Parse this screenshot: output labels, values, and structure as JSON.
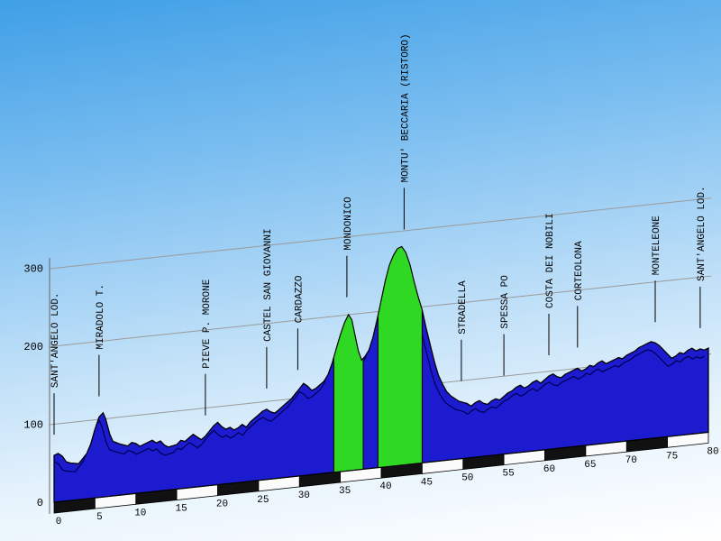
{
  "chart_data": {
    "type": "area",
    "description": "Cycling stage elevation profile with sheared 3D perspective",
    "xlim": [
      0,
      80
    ],
    "ylim": [
      0,
      300
    ],
    "x_ticks": [
      0,
      5,
      10,
      15,
      20,
      25,
      30,
      35,
      40,
      45,
      50,
      55,
      60,
      65,
      70,
      75,
      80
    ],
    "y_ticks": [
      0,
      100,
      200,
      300
    ],
    "grid": true,
    "profile": [
      [
        0,
        60
      ],
      [
        0.5,
        62
      ],
      [
        1,
        58
      ],
      [
        1.5,
        50
      ],
      [
        2,
        48
      ],
      [
        3,
        46
      ],
      [
        3.5,
        52
      ],
      [
        4,
        58
      ],
      [
        4.5,
        70
      ],
      [
        5,
        88
      ],
      [
        5.5,
        103
      ],
      [
        6,
        108
      ],
      [
        6.3,
        100
      ],
      [
        6.8,
        80
      ],
      [
        7.2,
        70
      ],
      [
        8,
        66
      ],
      [
        9,
        62
      ],
      [
        9.5,
        66
      ],
      [
        10,
        64
      ],
      [
        10.5,
        60
      ],
      [
        11,
        62
      ],
      [
        12,
        66
      ],
      [
        12.5,
        62
      ],
      [
        13,
        64
      ],
      [
        13.5,
        58
      ],
      [
        14,
        55
      ],
      [
        15,
        57
      ],
      [
        15.5,
        62
      ],
      [
        16,
        60
      ],
      [
        16.5,
        64
      ],
      [
        17,
        68
      ],
      [
        17.5,
        64
      ],
      [
        18,
        60
      ],
      [
        18.5,
        64
      ],
      [
        19,
        70
      ],
      [
        19.5,
        76
      ],
      [
        20,
        80
      ],
      [
        20.5,
        74
      ],
      [
        21,
        70
      ],
      [
        21.5,
        72
      ],
      [
        22,
        68
      ],
      [
        22.5,
        70
      ],
      [
        23,
        74
      ],
      [
        23.5,
        70
      ],
      [
        24,
        76
      ],
      [
        24.5,
        80
      ],
      [
        25,
        84
      ],
      [
        25.5,
        88
      ],
      [
        26,
        90
      ],
      [
        26.5,
        86
      ],
      [
        27,
        84
      ],
      [
        27.5,
        88
      ],
      [
        28,
        92
      ],
      [
        28.5,
        96
      ],
      [
        29,
        100
      ],
      [
        29.5,
        106
      ],
      [
        30,
        112
      ],
      [
        30.5,
        118
      ],
      [
        31,
        114
      ],
      [
        31.5,
        108
      ],
      [
        32,
        110
      ],
      [
        32.5,
        114
      ],
      [
        33,
        118
      ],
      [
        33.5,
        126
      ],
      [
        34,
        140
      ],
      [
        34.5,
        158
      ],
      [
        35,
        175
      ],
      [
        35.5,
        190
      ],
      [
        36,
        200
      ],
      [
        36.4,
        193
      ],
      [
        36.8,
        172
      ],
      [
        37.2,
        152
      ],
      [
        37.6,
        140
      ],
      [
        38,
        144
      ],
      [
        38.5,
        152
      ],
      [
        39,
        168
      ],
      [
        39.5,
        190
      ],
      [
        40,
        214
      ],
      [
        40.5,
        238
      ],
      [
        41,
        258
      ],
      [
        41.5,
        270
      ],
      [
        42,
        278
      ],
      [
        42.5,
        280
      ],
      [
        43,
        272
      ],
      [
        43.5,
        256
      ],
      [
        44,
        234
      ],
      [
        44.5,
        214
      ],
      [
        45,
        196
      ],
      [
        45.5,
        172
      ],
      [
        46,
        150
      ],
      [
        46.5,
        128
      ],
      [
        47,
        110
      ],
      [
        47.5,
        98
      ],
      [
        48,
        88
      ],
      [
        48.5,
        82
      ],
      [
        49,
        78
      ],
      [
        49.5,
        74
      ],
      [
        50,
        72
      ],
      [
        50.5,
        70
      ],
      [
        51,
        66
      ],
      [
        51.5,
        70
      ],
      [
        52,
        72
      ],
      [
        52.5,
        68
      ],
      [
        53,
        66
      ],
      [
        53.5,
        70
      ],
      [
        54,
        72
      ],
      [
        54.5,
        70
      ],
      [
        55,
        74
      ],
      [
        55.5,
        78
      ],
      [
        56,
        80
      ],
      [
        56.5,
        84
      ],
      [
        57,
        86
      ],
      [
        57.5,
        82
      ],
      [
        58,
        84
      ],
      [
        58.5,
        88
      ],
      [
        59,
        90
      ],
      [
        59.5,
        86
      ],
      [
        60,
        90
      ],
      [
        60.5,
        94
      ],
      [
        61,
        96
      ],
      [
        61.5,
        92
      ],
      [
        62,
        90
      ],
      [
        62.5,
        94
      ],
      [
        63,
        96
      ],
      [
        63.5,
        98
      ],
      [
        64,
        100
      ],
      [
        64.5,
        96
      ],
      [
        65,
        98
      ],
      [
        65.5,
        102
      ],
      [
        66,
        100
      ],
      [
        66.5,
        104
      ],
      [
        67,
        106
      ],
      [
        67.5,
        102
      ],
      [
        68,
        104
      ],
      [
        68.5,
        106
      ],
      [
        69,
        108
      ],
      [
        69.5,
        106
      ],
      [
        70,
        110
      ],
      [
        70.5,
        112
      ],
      [
        71,
        114
      ],
      [
        71.5,
        118
      ],
      [
        72,
        120
      ],
      [
        72.5,
        122
      ],
      [
        73,
        124
      ],
      [
        73.5,
        122
      ],
      [
        74,
        118
      ],
      [
        74.5,
        112
      ],
      [
        75,
        106
      ],
      [
        75.5,
        100
      ],
      [
        76,
        102
      ],
      [
        76.5,
        106
      ],
      [
        77,
        104
      ],
      [
        77.5,
        108
      ],
      [
        78,
        110
      ],
      [
        78.5,
        106
      ],
      [
        79,
        108
      ],
      [
        79.5,
        106
      ],
      [
        80,
        108
      ]
    ],
    "climb_segments_km": [
      [
        34.2,
        37.8
      ],
      [
        39.6,
        45
      ]
    ],
    "towns": [
      {
        "name": "SANT'ANGELO LOD.",
        "km": 0
      },
      {
        "name": "MIRADOLO T.",
        "km": 5.5
      },
      {
        "name": "PIEVE P. MORONE",
        "km": 18.5
      },
      {
        "name": "CASTEL SAN GIOVANNI",
        "km": 26
      },
      {
        "name": "CARDAZZO",
        "km": 29.8
      },
      {
        "name": "MONDONICO",
        "km": 35.8
      },
      {
        "name": "MONTU' BECCARIA (RISTORO)",
        "km": 42.8
      },
      {
        "name": "STRADELLA",
        "km": 49.8
      },
      {
        "name": "SPESSA PO",
        "km": 55
      },
      {
        "name": "COSTA DEI NOBILI",
        "km": 60.5
      },
      {
        "name": "CORTEOLONA",
        "km": 64
      },
      {
        "name": "MONTELEONE",
        "km": 73.5
      },
      {
        "name": "SANT'ANGELO LOD.",
        "km": 79
      }
    ],
    "colors": {
      "profile_fill": "#1c1bd0",
      "climb_fill": "#2fd822",
      "outline": "#000000",
      "ridge": "#000050",
      "gridline": "#9a9a9a",
      "bar_dark": "#111111",
      "bar_light": "#fbfbfb",
      "sky_top": "#3f9fe6",
      "sky_bottom": "#ffffff"
    }
  }
}
